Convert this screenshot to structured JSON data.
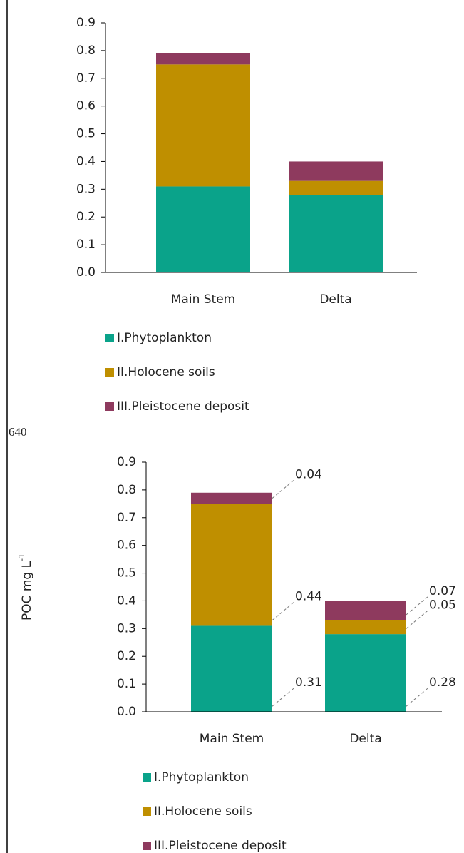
{
  "page_label": "640",
  "chart_data": [
    {
      "type": "stacked_bar",
      "categories": [
        "Main Stem",
        "Delta"
      ],
      "series": [
        {
          "name": "I.Phytoplankton",
          "color": "#0aa38a",
          "values": [
            0.31,
            0.28
          ]
        },
        {
          "name": "II.Holocene soils",
          "color": "#bf8f00",
          "values": [
            0.44,
            0.05
          ]
        },
        {
          "name": "III.Pleistocene deposit",
          "color": "#8e3a5e",
          "values": [
            0.04,
            0.07
          ]
        }
      ],
      "ylim": [
        0,
        0.9
      ],
      "yticks": [
        {
          "value": 0,
          "label": "0.0"
        },
        0.1,
        0.2,
        0.3,
        0.4,
        0.5,
        0.6,
        0.7,
        0.8,
        0.9
      ],
      "data_labels": false
    },
    {
      "type": "stacked_bar",
      "ylabel": {
        "text": "POC mg L",
        "superscript": "-1"
      },
      "categories": [
        "Main Stem",
        "Delta"
      ],
      "series": [
        {
          "name": "I.Phytoplankton",
          "color": "#0aa38a",
          "values": [
            0.31,
            0.28
          ]
        },
        {
          "name": "II.Holocene soils",
          "color": "#bf8f00",
          "values": [
            0.44,
            0.05
          ]
        },
        {
          "name": "III.Pleistocene deposit",
          "color": "#8e3a5e",
          "values": [
            0.04,
            0.07
          ]
        }
      ],
      "ylim": [
        0,
        0.9
      ],
      "yticks": [
        {
          "value": 0,
          "label": "0.0"
        },
        0.1,
        0.2,
        0.3,
        0.4,
        0.5,
        0.6,
        0.7,
        0.8,
        0.9
      ],
      "data_labels": true
    }
  ]
}
